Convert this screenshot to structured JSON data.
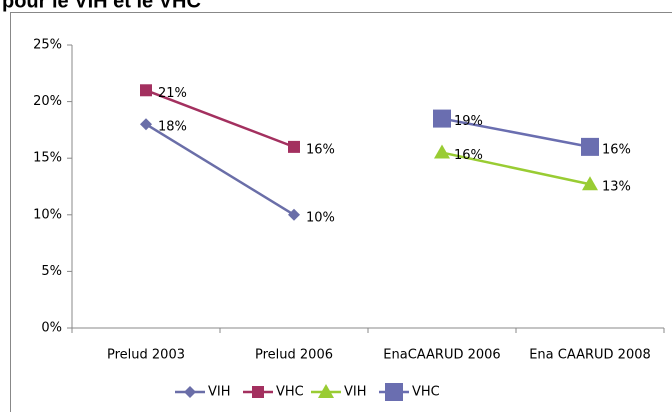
{
  "chart_data": {
    "type": "line",
    "title": "pour le VIH et le VHC",
    "categories": [
      "Prelud 2003",
      "Prelud 2006",
      "EnaCAARUD 2006",
      "Ena CAARUD 2008"
    ],
    "series": [
      {
        "name": "VIH",
        "color": "#6a6ea8",
        "marker": "diamond",
        "values": [
          18,
          10,
          null,
          null
        ],
        "value_labels": [
          "18%",
          "10%",
          null,
          null
        ]
      },
      {
        "name": "VHC",
        "color": "#a3305f",
        "marker": "square",
        "values": [
          21,
          16,
          null,
          null
        ],
        "value_labels": [
          "21%",
          "16%",
          null,
          null
        ]
      },
      {
        "name": "VIH",
        "color": "#99cc33",
        "marker": "triangle",
        "values": [
          null,
          null,
          15.5,
          12.7
        ],
        "value_labels": [
          null,
          null,
          "16%",
          "13%"
        ]
      },
      {
        "name": "VHC",
        "color": "#6a6eb0",
        "marker": "bigsquare",
        "values": [
          null,
          null,
          18.5,
          16
        ],
        "value_labels": [
          null,
          null,
          "19%",
          "16%"
        ]
      }
    ],
    "ylim": [
      0,
      25
    ],
    "yticks": [
      {
        "value": 0,
        "label": "0%"
      },
      {
        "value": 5,
        "label": "5%"
      },
      {
        "value": 10,
        "label": "10%"
      },
      {
        "value": 15,
        "label": "15%"
      },
      {
        "value": 20,
        "label": "20%"
      },
      {
        "value": 25,
        "label": "25%"
      }
    ],
    "legend": "bottom"
  }
}
